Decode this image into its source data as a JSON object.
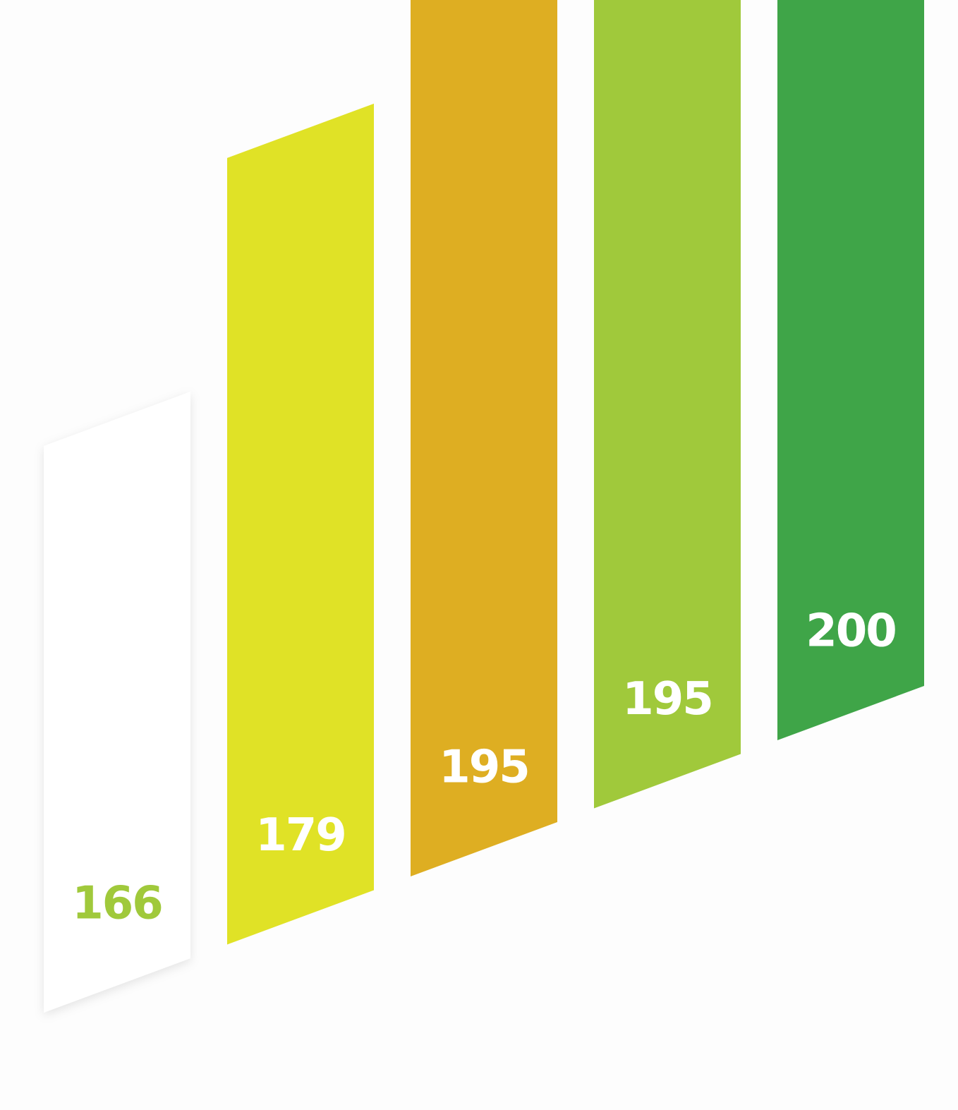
{
  "chart_data": {
    "type": "bar",
    "categories": [
      "",
      "",
      "",
      "",
      ""
    ],
    "values": [
      166,
      179,
      195,
      195,
      200
    ],
    "data_labels": [
      "166",
      "179",
      "195",
      "195",
      "200"
    ],
    "title": "",
    "xlabel": "",
    "ylabel": "",
    "grid": false,
    "legend": "none",
    "bar_colors": [
      "#ffffff",
      "#e0e226",
      "#deae22",
      "#a0c93b",
      "#3fa548"
    ],
    "label_colors": [
      "#a0c93b",
      "#ffffff",
      "#ffffff",
      "#ffffff",
      "#ffffff"
    ]
  }
}
